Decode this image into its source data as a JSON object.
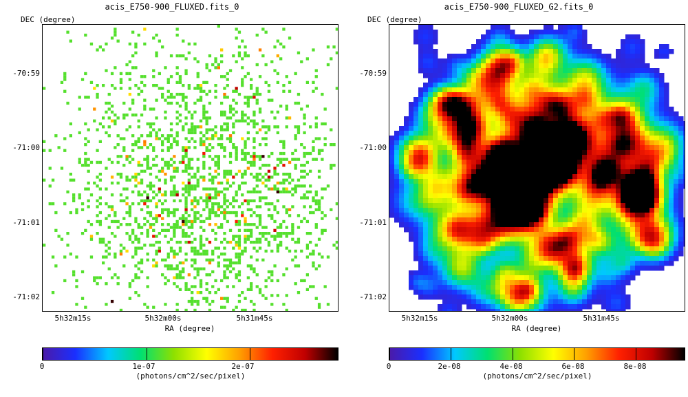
{
  "chart_data": [
    {
      "type": "heatmap",
      "title": "acis_E750-900_FLUXED.fits_0",
      "xlabel": "RA (degree)",
      "ylabel": "DEC (degree)",
      "x_ticks": [
        "5h32m15s",
        "5h32m00s",
        "5h31m45s"
      ],
      "y_ticks": [
        "-70:59",
        "-71:00",
        "-71:01",
        "-71:02"
      ],
      "colorbar": {
        "label": "(photons/cm^2/sec/pixel)",
        "ticks": [
          "0",
          "1e-07",
          "2e-07"
        ],
        "tick_values": [
          0,
          1e-07,
          2e-07
        ],
        "range": [
          0,
          2.85e-07
        ]
      },
      "render": "sparse-pixels",
      "seed": 7
    },
    {
      "type": "heatmap",
      "title": "acis_E750-900_FLUXED_G2.fits_0",
      "xlabel": "RA (degree)",
      "ylabel": "DEC (degree)",
      "x_ticks": [
        "5h32m15s",
        "5h32m00s",
        "5h31m45s"
      ],
      "y_ticks": [
        "-70:59",
        "-71:00",
        "-71:01",
        "-71:02"
      ],
      "colorbar": {
        "label": "(photons/cm^2/sec/pixel)",
        "ticks": [
          "0",
          "2e-08",
          "4e-08",
          "6e-08",
          "8e-08"
        ],
        "tick_values": [
          0,
          2e-08,
          4e-08,
          6e-08,
          8e-08
        ],
        "range": [
          0,
          9.6e-08
        ]
      },
      "render": "smoothed",
      "seed": 11
    }
  ],
  "colors": {
    "background": "#ffffff",
    "colormap": [
      "#4b1aa8",
      "#1a2fff",
      "#00c8ff",
      "#00e070",
      "#8ee000",
      "#ffff00",
      "#ffa000",
      "#ff2000",
      "#c00000",
      "#000000"
    ]
  }
}
